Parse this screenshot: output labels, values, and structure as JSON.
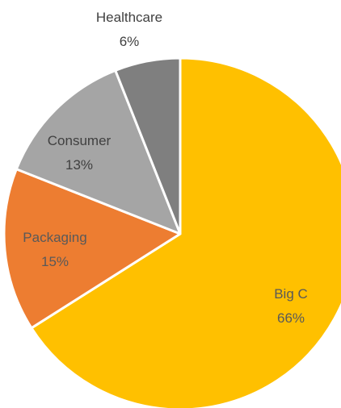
{
  "chart_data": {
    "type": "pie",
    "title": "",
    "slices": [
      {
        "label": "Big C",
        "value": 66,
        "percent_label": "66%",
        "color": "#FFC000",
        "label_color": "#595959"
      },
      {
        "label": "Packaging",
        "value": 15,
        "percent_label": "15%",
        "color": "#ED7D31",
        "label_color": "#595959"
      },
      {
        "label": "Consumer",
        "value": 13,
        "percent_label": "13%",
        "color": "#A5A5A5",
        "label_color": "#404040"
      },
      {
        "label": "Healthcare",
        "value": 6,
        "percent_label": "6%",
        "color": "#7F7F7F",
        "label_color": "#404040"
      }
    ],
    "start_angle": "12 o'clock",
    "direction": "clockwise",
    "legend": "none",
    "data_labels": "category name and percentage"
  }
}
